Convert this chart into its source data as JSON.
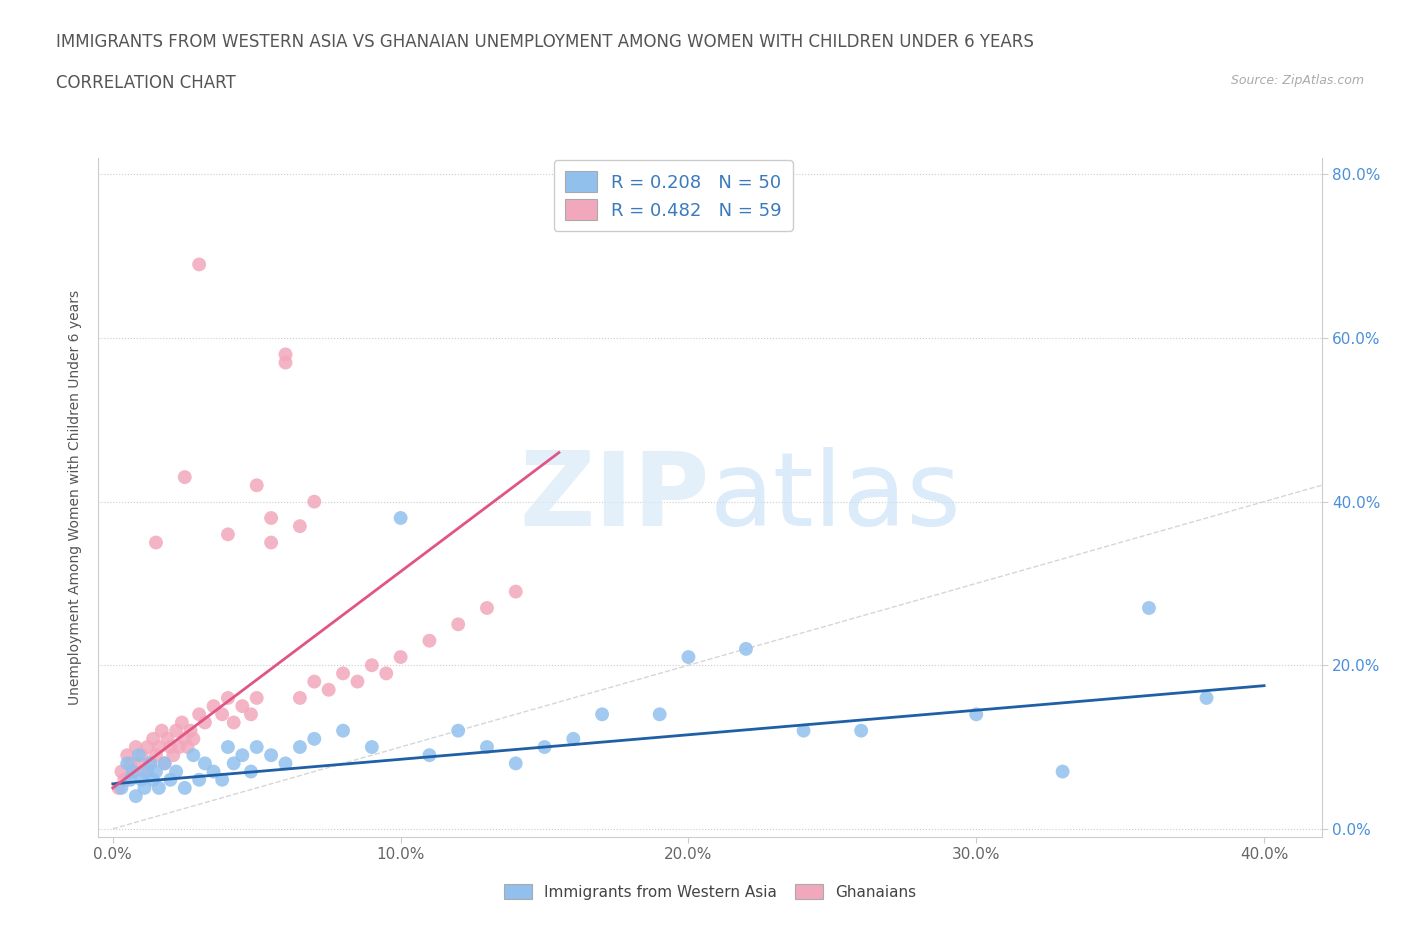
{
  "title": "IMMIGRANTS FROM WESTERN ASIA VS GHANAIAN UNEMPLOYMENT AMONG WOMEN WITH CHILDREN UNDER 6 YEARS",
  "subtitle": "CORRELATION CHART",
  "source": "Source: ZipAtlas.com",
  "xlabel_ticks": [
    "0.0%",
    "10.0%",
    "20.0%",
    "30.0%",
    "40.0%"
  ],
  "ylabel_ticks_right": [
    "0.0%",
    "20.0%",
    "40.0%",
    "60.0%",
    "80.0%"
  ],
  "xlim": [
    -0.005,
    0.42
  ],
  "ylim": [
    -0.01,
    0.82
  ],
  "xtick_vals": [
    0.0,
    0.1,
    0.2,
    0.3,
    0.4
  ],
  "ytick_vals": [
    0.0,
    0.2,
    0.4,
    0.6,
    0.8
  ],
  "blue_R": 0.208,
  "blue_N": 50,
  "pink_R": 0.482,
  "pink_N": 59,
  "blue_color": "#92c0ed",
  "pink_color": "#f2a8bc",
  "blue_line_color": "#1f5fa6",
  "pink_line_color": "#e05585",
  "diag_line_color": "#cccccc",
  "legend_label_blue": "Immigrants from Western Asia",
  "legend_label_pink": "Ghanaians",
  "blue_scatter_x": [
    0.003,
    0.005,
    0.006,
    0.007,
    0.008,
    0.009,
    0.01,
    0.011,
    0.012,
    0.013,
    0.014,
    0.015,
    0.016,
    0.018,
    0.02,
    0.022,
    0.025,
    0.028,
    0.03,
    0.032,
    0.035,
    0.038,
    0.04,
    0.042,
    0.045,
    0.048,
    0.05,
    0.055,
    0.06,
    0.065,
    0.07,
    0.08,
    0.09,
    0.1,
    0.11,
    0.12,
    0.13,
    0.14,
    0.15,
    0.16,
    0.17,
    0.19,
    0.2,
    0.22,
    0.24,
    0.26,
    0.3,
    0.33,
    0.36,
    0.38
  ],
  "blue_scatter_y": [
    0.05,
    0.08,
    0.06,
    0.07,
    0.04,
    0.09,
    0.06,
    0.05,
    0.07,
    0.08,
    0.06,
    0.07,
    0.05,
    0.08,
    0.06,
    0.07,
    0.05,
    0.09,
    0.06,
    0.08,
    0.07,
    0.06,
    0.1,
    0.08,
    0.09,
    0.07,
    0.1,
    0.09,
    0.08,
    0.1,
    0.11,
    0.12,
    0.1,
    0.38,
    0.09,
    0.12,
    0.1,
    0.08,
    0.1,
    0.11,
    0.14,
    0.14,
    0.21,
    0.22,
    0.12,
    0.12,
    0.14,
    0.07,
    0.27,
    0.16
  ],
  "pink_scatter_x": [
    0.002,
    0.003,
    0.004,
    0.005,
    0.006,
    0.007,
    0.008,
    0.009,
    0.01,
    0.011,
    0.012,
    0.013,
    0.014,
    0.015,
    0.016,
    0.017,
    0.018,
    0.019,
    0.02,
    0.021,
    0.022,
    0.023,
    0.024,
    0.025,
    0.026,
    0.027,
    0.028,
    0.03,
    0.032,
    0.035,
    0.038,
    0.04,
    0.042,
    0.045,
    0.048,
    0.05,
    0.055,
    0.06,
    0.065,
    0.07,
    0.075,
    0.08,
    0.085,
    0.09,
    0.095,
    0.1,
    0.11,
    0.12,
    0.13,
    0.14,
    0.05,
    0.06,
    0.07,
    0.03,
    0.04,
    0.055,
    0.065,
    0.025,
    0.015
  ],
  "pink_scatter_y": [
    0.05,
    0.07,
    0.06,
    0.09,
    0.08,
    0.07,
    0.1,
    0.08,
    0.09,
    0.07,
    0.1,
    0.08,
    0.11,
    0.09,
    0.1,
    0.12,
    0.08,
    0.11,
    0.1,
    0.09,
    0.12,
    0.1,
    0.13,
    0.11,
    0.1,
    0.12,
    0.11,
    0.14,
    0.13,
    0.15,
    0.14,
    0.16,
    0.13,
    0.15,
    0.14,
    0.16,
    0.38,
    0.57,
    0.16,
    0.18,
    0.17,
    0.19,
    0.18,
    0.2,
    0.19,
    0.21,
    0.23,
    0.25,
    0.27,
    0.29,
    0.42,
    0.58,
    0.4,
    0.69,
    0.36,
    0.35,
    0.37,
    0.43,
    0.35
  ],
  "blue_regline_x": [
    0.0,
    0.4
  ],
  "blue_regline_y": [
    0.055,
    0.175
  ],
  "pink_regline_x": [
    0.0,
    0.155
  ],
  "pink_regline_y": [
    0.05,
    0.46
  ]
}
